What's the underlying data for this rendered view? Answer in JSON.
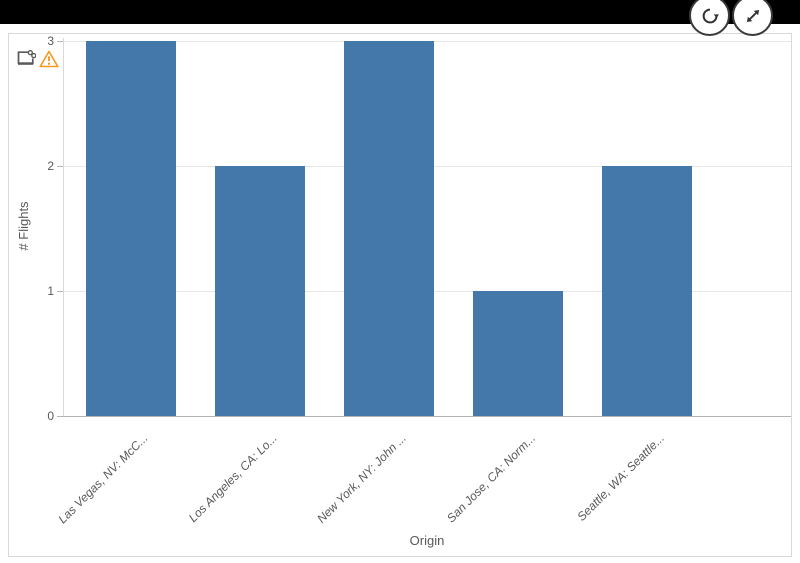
{
  "header": {
    "buttons": [
      {
        "label": "refresh",
        "icon": "refresh-icon"
      },
      {
        "label": "expand",
        "icon": "expand-icon"
      }
    ]
  },
  "chart_card": {
    "status_icons": [
      {
        "icon": "shared-object-icon"
      },
      {
        "icon": "warning-icon",
        "color": "#f8981d"
      }
    ]
  },
  "chart_data": {
    "type": "bar",
    "title": "",
    "categories": [
      "Las Vegas, NV: McC...",
      "Los Angeles, CA: Lo...",
      "New York, NY: John ...",
      "San Jose, CA: Norm...",
      "Seattle, WA: Seattle..."
    ],
    "values": [
      3,
      2,
      3,
      1,
      2
    ],
    "xlabel": "Origin",
    "ylabel": "# Flights",
    "ylim": [
      0,
      3
    ],
    "yticks": [
      0,
      1,
      2,
      3
    ],
    "bar_color": "#4477aa",
    "grid": true,
    "legend_position": "none"
  }
}
